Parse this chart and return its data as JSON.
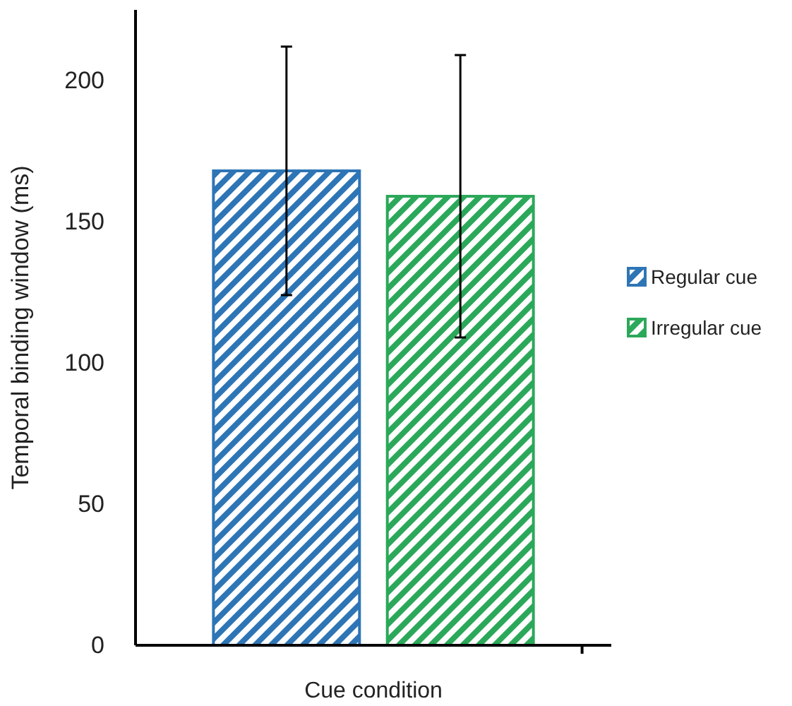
{
  "chart_data": {
    "type": "bar",
    "xlabel": "Cue condition",
    "ylabel": "Temporal binding window (ms)",
    "categories": [
      null
    ],
    "series": [
      {
        "name": "Regular cue",
        "color": "#2e75b6",
        "values": [
          168
        ],
        "errors": [
          44
        ]
      },
      {
        "name": "Irregular cue",
        "color": "#2ca85a",
        "values": [
          159
        ],
        "errors": [
          50
        ]
      }
    ],
    "ylim": [
      0,
      225
    ],
    "yticks": [
      0,
      50,
      100,
      150,
      200
    ],
    "legend": "right",
    "grid": false
  }
}
